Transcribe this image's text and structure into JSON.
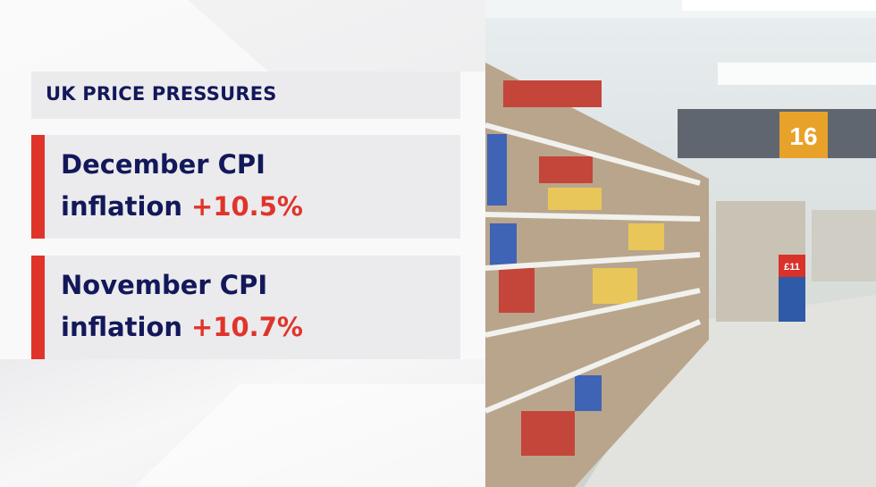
{
  "header": {
    "title": "UK PRICE PRESSURES"
  },
  "cards": [
    {
      "line1": "December CPI",
      "label": "inflation",
      "value": "+10.5%"
    },
    {
      "line1": "November CPI",
      "label": "inflation",
      "value": "+10.7%"
    }
  ],
  "photo": {
    "aisle_sign": "16",
    "price_sign": "£11"
  },
  "colors": {
    "navy": "#13185a",
    "accent_red": "#e0342b",
    "panel_grey": "#ebebed",
    "sign_orange": "#e8a22a"
  }
}
